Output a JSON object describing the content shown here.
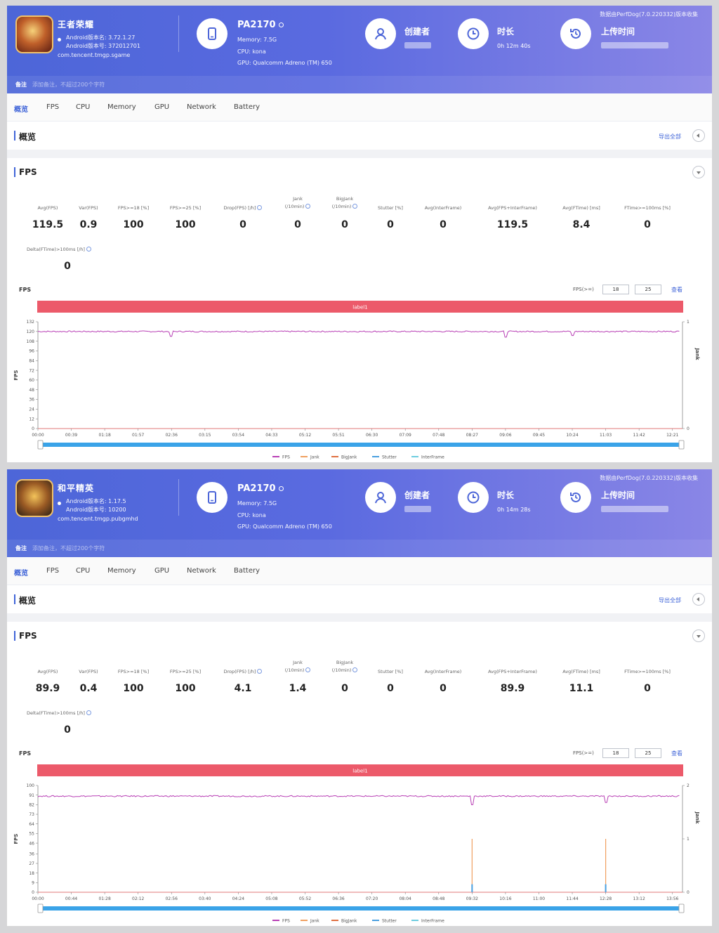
{
  "panels": [
    {
      "app": {
        "name": "王者荣耀",
        "android_version_label": "Android版本名: 3.72.1.27",
        "android_code_label": "Android版本号: 372012701",
        "package": "com.tencent.tmgp.sgame"
      },
      "device": {
        "name": "PA2170",
        "memory": "Memory: 7.5G",
        "cpu": "CPU: kona",
        "gpu": "GPU: Qualcomm Adreno (TM) 650"
      },
      "creator_label": "创建者",
      "duration_label": "时长",
      "duration_value": "0h 12m 40s",
      "upload_label": "上传时间",
      "source_note": "数据由PerfDog(7.0.220332)版本收集",
      "note_label": "备注",
      "note_placeholder": "添加备注，不超过200个字符",
      "tabs": [
        "概览",
        "FPS",
        "CPU",
        "Memory",
        "GPU",
        "Network",
        "Battery"
      ],
      "overview_title": "概览",
      "export_label": "导出全部",
      "fps_title": "FPS",
      "metrics": [
        {
          "label": "Avg(FPS)",
          "value": "119.5"
        },
        {
          "label": "Var(FPS)",
          "value": "0.9"
        },
        {
          "label": "FPS>=18 [%]",
          "value": "100"
        },
        {
          "label": "FPS>=25 [%]",
          "value": "100"
        },
        {
          "label": "Drop(FPS) [/h]",
          "value": "0",
          "info": true
        },
        {
          "label": "Jank\n(/10min)",
          "value": "0",
          "info": true
        },
        {
          "label": "BigJank\n(/10min)",
          "value": "0",
          "info": true
        },
        {
          "label": "Stutter [%]",
          "value": "0"
        },
        {
          "label": "Avg(InterFrame)",
          "value": "0"
        },
        {
          "label": "Avg(FPS+InterFrame)",
          "value": "119.5"
        },
        {
          "label": "Avg(FTime) [ms]",
          "value": "8.4"
        },
        {
          "label": "FTime>=100ms [%]",
          "value": "0"
        }
      ],
      "delta_label": "Delta(FTime)>100ms [/h]",
      "delta_value": "0",
      "fps_filter_label": "FPS(>=)",
      "fps_filter_1": "18",
      "fps_filter_2": "25",
      "apply_label": "查看",
      "chart_data": {
        "type": "line",
        "title": "FPS",
        "band_label": "label1",
        "ylabel": "FPS",
        "y2label": "Jank",
        "ylim": [
          0,
          132
        ],
        "yticks": [
          "132",
          "120",
          "108",
          "96",
          "84",
          "72",
          "60",
          "48",
          "36",
          "24",
          "12",
          "0"
        ],
        "y2ticks": [
          "1",
          "0"
        ],
        "xticks": [
          "00:00",
          "00:39",
          "01:18",
          "01:57",
          "02:36",
          "03:15",
          "03:54",
          "04:33",
          "05:12",
          "05:51",
          "06:30",
          "07:09",
          "07:48",
          "08:27",
          "09:06",
          "09:45",
          "10:24",
          "11:03",
          "11:42",
          "12:21"
        ],
        "grid": false,
        "legend_position": "bottom",
        "legend": [
          "FPS",
          "Jank",
          "BigJank",
          "Stutter",
          "InterFrame"
        ],
        "colors": {
          "FPS": "#b83fb5",
          "Jank": "#f0a060",
          "BigJank": "#e07040",
          "Stutter": "#4aa0e0",
          "InterFrame": "#6ccde0"
        },
        "series": [
          {
            "name": "FPS",
            "baseline": 120,
            "dips": [
              {
                "t": "02:36",
                "value": 114
              },
              {
                "t": "09:06",
                "value": 113
              },
              {
                "t": "10:24",
                "value": 115
              }
            ]
          },
          {
            "name": "Jank",
            "events": []
          },
          {
            "name": "BigJank",
            "events": []
          },
          {
            "name": "Stutter",
            "events": []
          },
          {
            "name": "InterFrame",
            "events": []
          }
        ]
      }
    },
    {
      "app": {
        "name": "和平精英",
        "android_version_label": "Android版本名: 1.17.5",
        "android_code_label": "Android版本号: 10200",
        "package": "com.tencent.tmgp.pubgmhd"
      },
      "device": {
        "name": "PA2170",
        "memory": "Memory: 7.5G",
        "cpu": "CPU: kona",
        "gpu": "GPU: Qualcomm Adreno (TM) 650"
      },
      "creator_label": "创建者",
      "duration_label": "时长",
      "duration_value": "0h 14m 28s",
      "upload_label": "上传时间",
      "source_note": "数据由PerfDog(7.0.220332)版本收集",
      "note_label": "备注",
      "note_placeholder": "添加备注，不超过200个字符",
      "tabs": [
        "概览",
        "FPS",
        "CPU",
        "Memory",
        "GPU",
        "Network",
        "Battery"
      ],
      "overview_title": "概览",
      "export_label": "导出全部",
      "fps_title": "FPS",
      "metrics": [
        {
          "label": "Avg(FPS)",
          "value": "89.9"
        },
        {
          "label": "Var(FPS)",
          "value": "0.4"
        },
        {
          "label": "FPS>=18 [%]",
          "value": "100"
        },
        {
          "label": "FPS>=25 [%]",
          "value": "100"
        },
        {
          "label": "Drop(FPS) [/h]",
          "value": "4.1",
          "info": true
        },
        {
          "label": "Jank\n(/10min)",
          "value": "1.4",
          "info": true
        },
        {
          "label": "BigJank\n(/10min)",
          "value": "0",
          "info": true
        },
        {
          "label": "Stutter [%]",
          "value": "0"
        },
        {
          "label": "Avg(InterFrame)",
          "value": "0"
        },
        {
          "label": "Avg(FPS+InterFrame)",
          "value": "89.9"
        },
        {
          "label": "Avg(FTime) [ms]",
          "value": "11.1"
        },
        {
          "label": "FTime>=100ms [%]",
          "value": "0"
        }
      ],
      "delta_label": "Delta(FTime)>100ms [/h]",
      "delta_value": "0",
      "fps_filter_label": "FPS(>=)",
      "fps_filter_1": "18",
      "fps_filter_2": "25",
      "apply_label": "查看",
      "chart_data": {
        "type": "line",
        "title": "FPS",
        "band_label": "label1",
        "ylabel": "FPS",
        "y2label": "Jank",
        "ylim": [
          0,
          100
        ],
        "yticks": [
          "100",
          "91",
          "82",
          "73",
          "64",
          "55",
          "46",
          "36",
          "27",
          "18",
          "9",
          "0"
        ],
        "y2ticks": [
          "2",
          "1",
          "0"
        ],
        "xticks": [
          "00:00",
          "00:44",
          "01:28",
          "02:12",
          "02:56",
          "03:40",
          "04:24",
          "05:08",
          "05:52",
          "06:36",
          "07:20",
          "08:04",
          "08:48",
          "09:32",
          "10:16",
          "11:00",
          "11:44",
          "12:28",
          "13:12",
          "13:56"
        ],
        "grid": false,
        "legend_position": "bottom",
        "legend": [
          "FPS",
          "Jank",
          "BigJank",
          "Stutter",
          "InterFrame"
        ],
        "colors": {
          "FPS": "#b83fb5",
          "Jank": "#f0a060",
          "BigJank": "#e07040",
          "Stutter": "#4aa0e0",
          "InterFrame": "#6ccde0"
        },
        "series": [
          {
            "name": "FPS",
            "baseline": 90,
            "dips": [
              {
                "t": "09:32",
                "value": 82
              },
              {
                "t": "12:28",
                "value": 84
              }
            ]
          },
          {
            "name": "Jank",
            "events": [
              {
                "t": "09:32",
                "value": 1
              },
              {
                "t": "12:28",
                "value": 1
              }
            ]
          },
          {
            "name": "BigJank",
            "events": []
          },
          {
            "name": "Stutter",
            "events": [
              {
                "t": "09:32",
                "value": 0.15
              },
              {
                "t": "12:28",
                "value": 0.15
              }
            ]
          },
          {
            "name": "InterFrame",
            "events": []
          }
        ]
      }
    }
  ]
}
